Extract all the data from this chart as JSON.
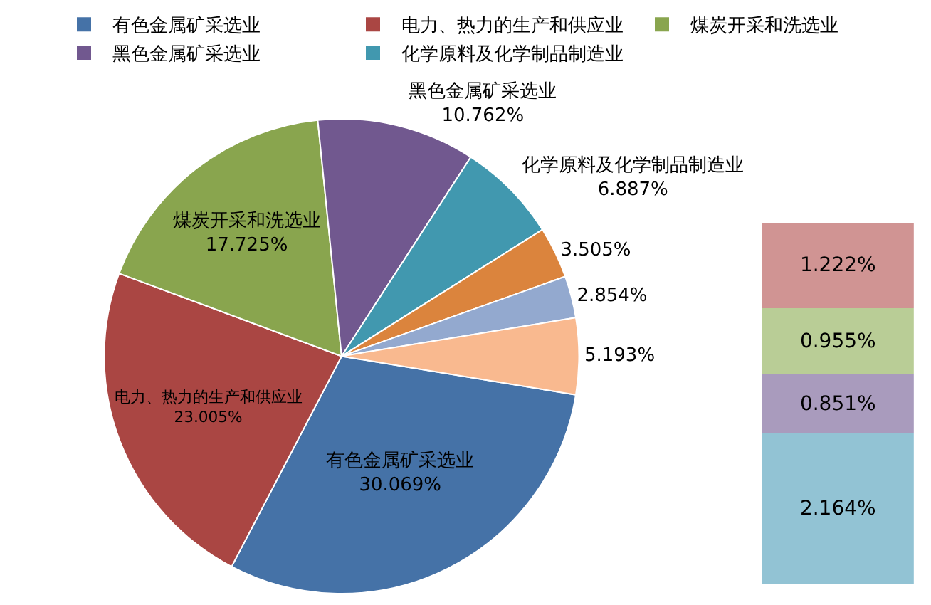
{
  "chart_data": [
    {
      "type": "pie",
      "categories": [
        "有色金属矿采选业",
        "电力、热力的生产和供应业",
        "煤炭开采和洗选业",
        "黑色金属矿采选业",
        "化学原料及化学制品制造业",
        null,
        null,
        null
      ],
      "values": [
        30.069,
        23.005,
        17.725,
        10.762,
        6.887,
        3.505,
        2.854,
        5.193
      ],
      "value_labels": [
        "30.069%",
        "23.005%",
        "17.725%",
        "10.762%",
        "6.887%",
        "3.505%",
        "2.854%",
        "5.193%"
      ],
      "colors": [
        "#4572a7",
        "#aa4643",
        "#89a54e",
        "#71588f",
        "#4198af",
        "#db843d",
        "#93a9cf",
        "#f9b98f"
      ],
      "legend": "top"
    },
    {
      "type": "bar",
      "stacked": true,
      "categories": [
        null
      ],
      "tick_labels": false,
      "series": [
        {
          "color": "#92c3d4",
          "values": [
            2.164
          ],
          "value_labels": [
            "2.164%"
          ]
        },
        {
          "color": "#a99bbd",
          "values": [
            0.851
          ],
          "value_labels": [
            "0.851%"
          ]
        },
        {
          "color": "#b9cd96",
          "values": [
            0.955
          ],
          "value_labels": [
            "0.955%"
          ]
        },
        {
          "color": "#d09493",
          "values": [
            1.222
          ],
          "value_labels": [
            "1.222%"
          ]
        }
      ]
    }
  ]
}
